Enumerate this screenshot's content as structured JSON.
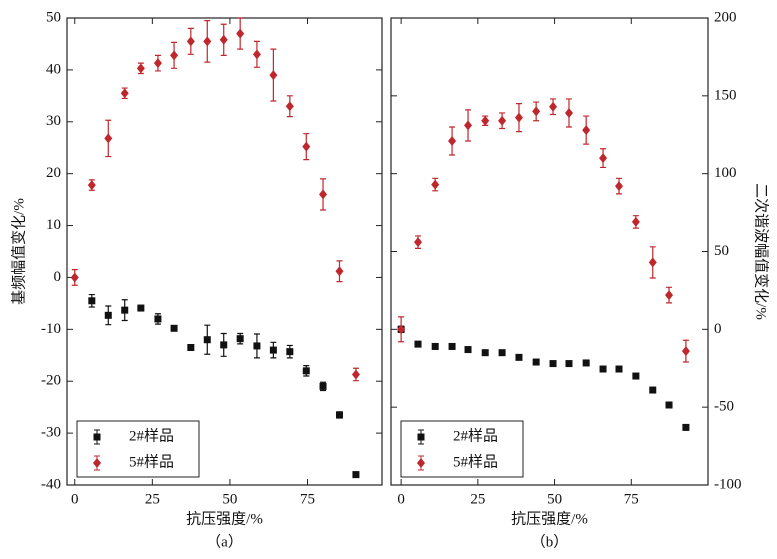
{
  "chart_data": [
    {
      "type": "scatter",
      "caption": "（a）",
      "xlabel": "抗压强度/%",
      "ylabel": "基频幅值变化/%",
      "xlim": [
        -2.5,
        99
      ],
      "xticks": [
        0,
        25,
        50,
        75
      ],
      "ylim": [
        -40,
        50
      ],
      "yticks": [
        -40,
        -30,
        -20,
        -10,
        0,
        10,
        20,
        30,
        40,
        50
      ],
      "legend": "lower left",
      "series": [
        {
          "name": "2#样品",
          "color": "#111111",
          "marker": "square",
          "x": [
            5.5,
            10.8,
            16.1,
            21.3,
            26.8,
            32,
            37.4,
            42.7,
            48,
            53.3,
            58.7,
            64,
            69.3,
            74.6,
            80,
            85.3,
            90.6
          ],
          "values": [
            -4.5,
            -7.3,
            -6.3,
            -5.9,
            -8,
            -9.8,
            -13.5,
            -12,
            -13,
            -11.8,
            -13.2,
            -14,
            -14.3,
            -18,
            -21,
            -26.5,
            -38
          ],
          "errors": [
            1.2,
            1.8,
            2,
            0.5,
            1,
            0.4,
            0.5,
            2.8,
            2.2,
            1,
            2.3,
            1.5,
            1.2,
            1,
            0.8,
            0.6,
            0.5
          ]
        },
        {
          "name": "5#样品",
          "color": "#c0272d",
          "marker": "diamond",
          "x": [
            0,
            5.5,
            10.8,
            16.1,
            21.3,
            26.8,
            32,
            37.4,
            42.7,
            48,
            53.3,
            58.7,
            64,
            69.3,
            74.6,
            80,
            85.3,
            90.6
          ],
          "values": [
            0,
            17.8,
            26.8,
            35.5,
            40.3,
            41.3,
            42.8,
            45.5,
            45.5,
            45.8,
            47,
            43,
            39,
            33,
            25.2,
            16,
            1.2,
            -18.7
          ],
          "errors": [
            1.5,
            1,
            3.5,
            1,
            1,
            1.5,
            2.5,
            2.5,
            4,
            3,
            3,
            2.5,
            5,
            2,
            2.5,
            3,
            2,
            1.2
          ]
        }
      ]
    },
    {
      "type": "scatter",
      "caption": "（b）",
      "xlabel": "抗压强度/%",
      "y2label": "二次谐波幅值变化/%",
      "xlim": [
        -3.3,
        100
      ],
      "xticks": [
        0,
        25,
        50,
        75
      ],
      "y2lim": [
        -100,
        200
      ],
      "y2ticks": [
        -100,
        -50,
        0,
        50,
        100,
        150,
        200
      ],
      "legend": "lower left",
      "series": [
        {
          "name": "2#样品",
          "color": "#111111",
          "marker": "square",
          "axis": "y2",
          "x": [
            0,
            5.5,
            11.1,
            16.6,
            21.8,
            27.4,
            32.9,
            38.4,
            44,
            49.5,
            54.7,
            60.3,
            65.8,
            71,
            76.5,
            82,
            87.3,
            92.8
          ],
          "values": [
            0,
            -9.5,
            -11,
            -11,
            -13,
            -15,
            -15,
            -18,
            -21,
            -22,
            -22,
            -21.6,
            -25.5,
            -25.5,
            -30,
            -39,
            -48.6,
            -63
          ],
          "errors": [
            2,
            1.5,
            1.5,
            1.5,
            1.5,
            1.5,
            1.5,
            1.5,
            1.5,
            1.5,
            1.5,
            1.5,
            1.5,
            1.5,
            1.5,
            1.5,
            1.5,
            1.5
          ]
        },
        {
          "name": "5#样品",
          "color": "#c0272d",
          "marker": "diamond",
          "axis": "y2",
          "x": [
            0,
            5.5,
            11.1,
            16.6,
            21.8,
            27.4,
            32.9,
            38.4,
            44,
            49.5,
            54.7,
            60.3,
            65.8,
            71,
            76.5,
            82,
            87.3,
            92.8
          ],
          "values": [
            0,
            56,
            93,
            121,
            131,
            134,
            134,
            136,
            140,
            143,
            139,
            128,
            110,
            92,
            69,
            43,
            22,
            -14
          ],
          "errors": [
            8,
            4,
            4,
            9,
            10,
            3,
            5,
            9,
            6,
            5,
            9,
            9,
            6,
            5,
            4,
            10,
            5,
            7
          ]
        }
      ]
    }
  ]
}
